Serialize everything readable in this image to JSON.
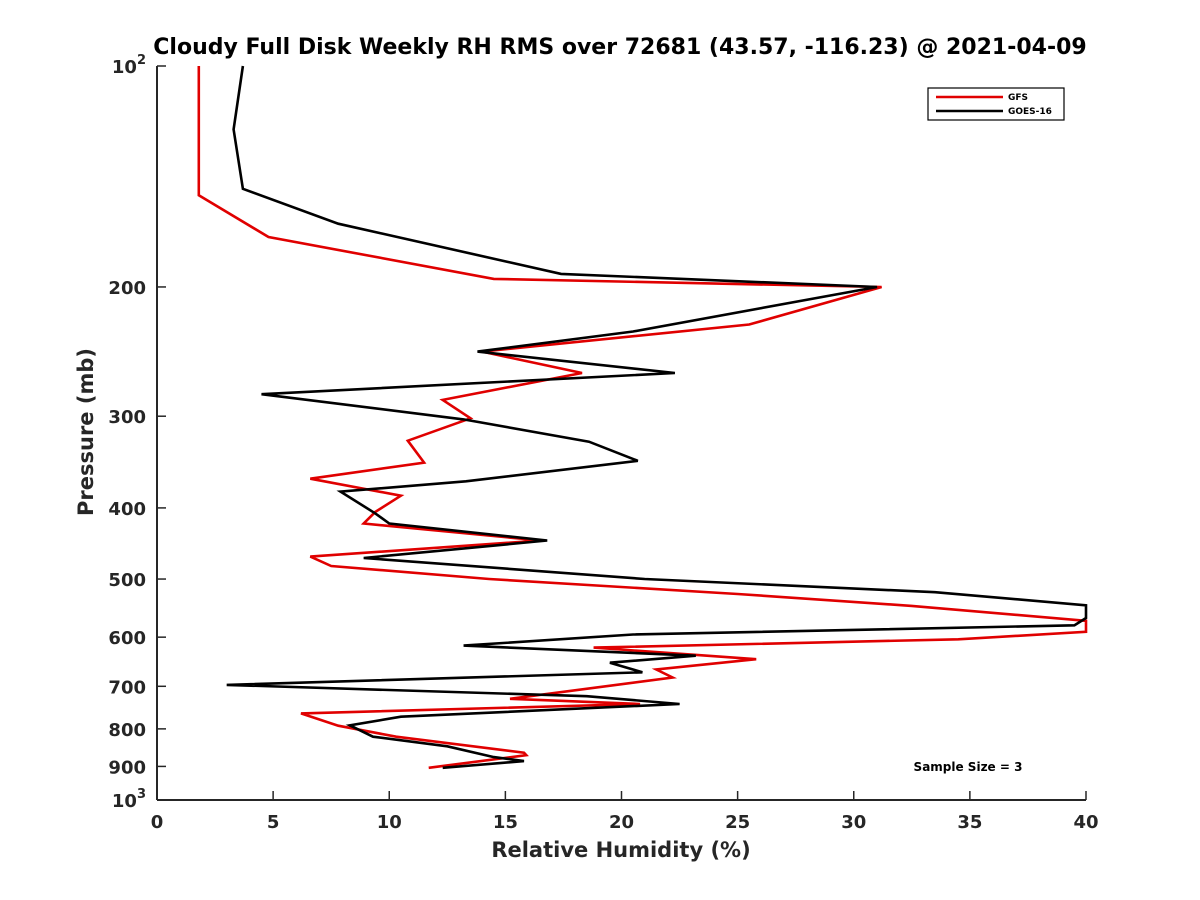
{
  "chart_data": {
    "type": "line",
    "title": "Cloudy Full Disk Weekly RH RMS over 72681 (43.57, -116.23) @ 2021-04-09",
    "xlabel": "Relative Humidity (%)",
    "ylabel": "Pressure (mb)",
    "xlim": [
      0,
      40
    ],
    "ylim": [
      100,
      1000
    ],
    "y_scale": "log",
    "y_reversed": true,
    "grid": false,
    "legend_position": "top-right",
    "x_ticks": [
      "0",
      "5",
      "10",
      "15",
      "20",
      "25",
      "30",
      "35",
      "40"
    ],
    "y_ticks": [
      {
        "value": 100,
        "base": "10",
        "exp": "2"
      },
      {
        "value": 200,
        "label": "200"
      },
      {
        "value": 300,
        "label": "300"
      },
      {
        "value": 400,
        "label": "400"
      },
      {
        "value": 500,
        "label": "500"
      },
      {
        "value": 600,
        "label": "600"
      },
      {
        "value": 700,
        "label": "700"
      },
      {
        "value": 800,
        "label": "800"
      },
      {
        "value": 900,
        "label": "900"
      },
      {
        "value": 1000,
        "base": "10",
        "exp": "3"
      }
    ],
    "annotation": "Sample Size = 3",
    "series": [
      {
        "name": "GFS",
        "color": "#e00000",
        "points": [
          [
            1.8,
            100
          ],
          [
            1.8,
            150
          ],
          [
            4.8,
            171
          ],
          [
            14.5,
            195
          ],
          [
            31.2,
            200
          ],
          [
            25.5,
            225
          ],
          [
            14.0,
            245
          ],
          [
            18.3,
            262
          ],
          [
            12.3,
            285
          ],
          [
            13.5,
            302
          ],
          [
            10.8,
            324
          ],
          [
            11.5,
            347
          ],
          [
            6.6,
            365
          ],
          [
            10.5,
            385
          ],
          [
            9.4,
            405
          ],
          [
            8.9,
            420
          ],
          [
            16.5,
            443
          ],
          [
            6.6,
            466
          ],
          [
            7.5,
            480
          ],
          [
            14.3,
            500
          ],
          [
            25.0,
            524
          ],
          [
            32.5,
            544
          ],
          [
            40.0,
            570
          ],
          [
            40.0,
            590
          ],
          [
            34.5,
            604
          ],
          [
            18.8,
            620
          ],
          [
            25.8,
            643
          ],
          [
            21.5,
            664
          ],
          [
            22.2,
            681
          ],
          [
            15.2,
            728
          ],
          [
            20.8,
            740
          ],
          [
            6.2,
            762
          ],
          [
            7.8,
            792
          ],
          [
            10.3,
            820
          ],
          [
            15.8,
            862
          ],
          [
            15.9,
            869
          ],
          [
            11.7,
            904
          ]
        ]
      },
      {
        "name": "GOES-16",
        "color": "#000000",
        "points": [
          [
            3.7,
            100
          ],
          [
            3.3,
            122
          ],
          [
            3.7,
            147
          ],
          [
            7.8,
            164
          ],
          [
            17.4,
            192
          ],
          [
            31.0,
            200
          ],
          [
            20.5,
            230
          ],
          [
            13.8,
            245
          ],
          [
            22.3,
            262
          ],
          [
            4.5,
            280
          ],
          [
            13.2,
            303
          ],
          [
            18.6,
            325
          ],
          [
            20.7,
            345
          ],
          [
            13.3,
            368
          ],
          [
            7.9,
            380
          ],
          [
            9.4,
            407
          ],
          [
            10.0,
            420
          ],
          [
            16.8,
            443
          ],
          [
            8.9,
            468
          ],
          [
            21.0,
            500
          ],
          [
            33.5,
            521
          ],
          [
            40.0,
            543
          ],
          [
            40.0,
            565
          ],
          [
            39.5,
            578
          ],
          [
            20.5,
            595
          ],
          [
            13.2,
            616
          ],
          [
            23.2,
            636
          ],
          [
            19.5,
            650
          ],
          [
            20.9,
            670
          ],
          [
            3.0,
            697
          ],
          [
            18.5,
            722
          ],
          [
            22.5,
            740
          ],
          [
            10.5,
            770
          ],
          [
            8.3,
            791
          ],
          [
            9.3,
            820
          ],
          [
            12.5,
            845
          ],
          [
            14.5,
            874
          ],
          [
            15.8,
            885
          ],
          [
            12.3,
            904
          ]
        ]
      }
    ]
  }
}
